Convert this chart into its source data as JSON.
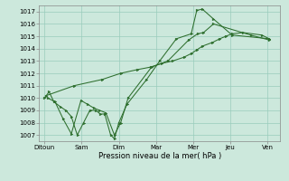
{
  "title": "",
  "xlabel": "Pression niveau de la mer( hPa )",
  "ylabel": "",
  "background_color": "#cce8dc",
  "grid_color": "#99ccbb",
  "line_color": "#2d6e2d",
  "marker_color": "#2d6e2d",
  "ylim": [
    1006.5,
    1017.5
  ],
  "yticks": [
    1007,
    1008,
    1009,
    1010,
    1011,
    1012,
    1013,
    1014,
    1015,
    1016,
    1017
  ],
  "day_labels": [
    "Ditoun",
    "Sam",
    "Dim",
    "Mar",
    "Mer",
    "Jeu",
    "Ven"
  ],
  "day_positions": [
    0,
    1,
    2,
    3,
    4,
    5,
    6
  ],
  "series": [
    [
      1010.0,
      1010.5,
      1009.7,
      1009.3,
      1009.0,
      1008.5,
      1007.0,
      1008.0,
      1009.0,
      1009.0,
      1008.7,
      1008.7,
      1007.0,
      1006.7,
      1008.0,
      1009.5,
      1011.5,
      1013.0,
      1014.8,
      1015.2,
      1017.1,
      1017.2,
      1016.4,
      1015.1,
      1014.8
    ],
    [
      1010.2,
      1011.0,
      1011.5,
      1012.0,
      1012.3,
      1012.5,
      1012.8,
      1013.0,
      1013.3,
      1013.6,
      1013.9,
      1014.2,
      1014.5,
      1014.8,
      1015.0,
      1015.2,
      1015.3,
      1015.1,
      1014.8
    ],
    [
      1010.0,
      1009.7,
      1008.3,
      1007.1,
      1009.8,
      1009.5,
      1009.2,
      1009.0,
      1008.8,
      1007.0,
      1008.0,
      1010.0,
      1012.5,
      1013.0,
      1014.7,
      1015.2,
      1015.3,
      1016.0,
      1015.1,
      1014.7
    ]
  ],
  "series_x": [
    [
      0.0,
      0.12,
      0.25,
      0.42,
      0.57,
      0.72,
      0.88,
      1.05,
      1.22,
      1.38,
      1.5,
      1.62,
      1.78,
      1.88,
      2.0,
      2.22,
      2.75,
      3.1,
      3.55,
      3.95,
      4.1,
      4.25,
      4.55,
      5.05,
      6.05
    ],
    [
      0.05,
      0.8,
      1.55,
      2.05,
      2.5,
      2.85,
      3.15,
      3.45,
      3.75,
      3.95,
      4.1,
      4.25,
      4.52,
      4.72,
      4.88,
      5.05,
      5.35,
      5.85,
      6.05
    ],
    [
      0.08,
      0.28,
      0.5,
      0.72,
      0.98,
      1.15,
      1.32,
      1.48,
      1.65,
      1.88,
      2.05,
      2.25,
      2.88,
      3.32,
      3.88,
      4.12,
      4.28,
      4.55,
      5.55,
      6.05
    ]
  ]
}
